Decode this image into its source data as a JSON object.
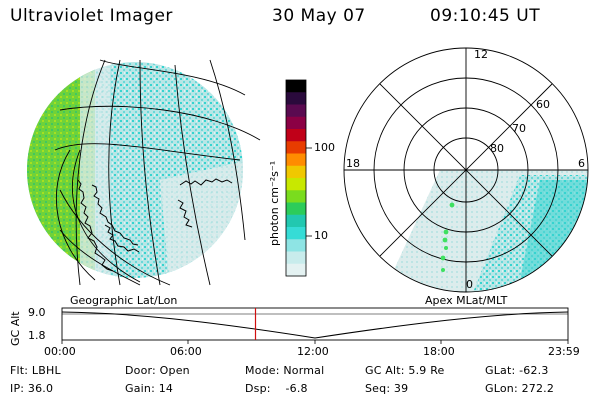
{
  "header": {
    "instrument": "Ultraviolet Imager",
    "date": "30 May 07",
    "time": "09:10:45 UT"
  },
  "colorbar": {
    "unit_label": "photon cm⁻²s⁻¹",
    "ticks": [
      "100",
      "10"
    ],
    "colors": [
      "#000000",
      "#2a0a3c",
      "#5a0a50",
      "#8b0044",
      "#c00018",
      "#e83c00",
      "#ff8c00",
      "#f0c800",
      "#c8e800",
      "#7adc1e",
      "#2ccc5a",
      "#22c8b0",
      "#36dcd6",
      "#8ee4e4",
      "#c8ecec",
      "#e4f2f2"
    ]
  },
  "left_panel": {
    "label": "Geographic Lat/Lon"
  },
  "right_panel": {
    "label": "Apex MLat/MLT",
    "mlt_labels": {
      "top": "12",
      "left": "18",
      "right": "6",
      "bottom": "0"
    },
    "lat_labels": [
      "60",
      "70",
      "80"
    ]
  },
  "altitude_plot": {
    "ylabel": "GC Alt",
    "y_ticks": [
      "9.0",
      "1.8"
    ],
    "x_ticks": [
      "00:00",
      "06:00",
      "12:00",
      "18:00",
      "23:59"
    ],
    "current_time_hours": 9.18,
    "marker_color": "#d01010"
  },
  "footer": {
    "flt": "Flt: LBHL",
    "door": "Door: Open",
    "mode": "Mode: Normal",
    "gcalt": "GC Alt: 5.9 Re",
    "glat": "GLat: -62.3",
    "ip": "IP: 36.0",
    "gain": "Gain: 14",
    "dsp": "Dsp:    -6.8",
    "seq": "Seq: 39",
    "glon": "GLon: 272.2"
  }
}
